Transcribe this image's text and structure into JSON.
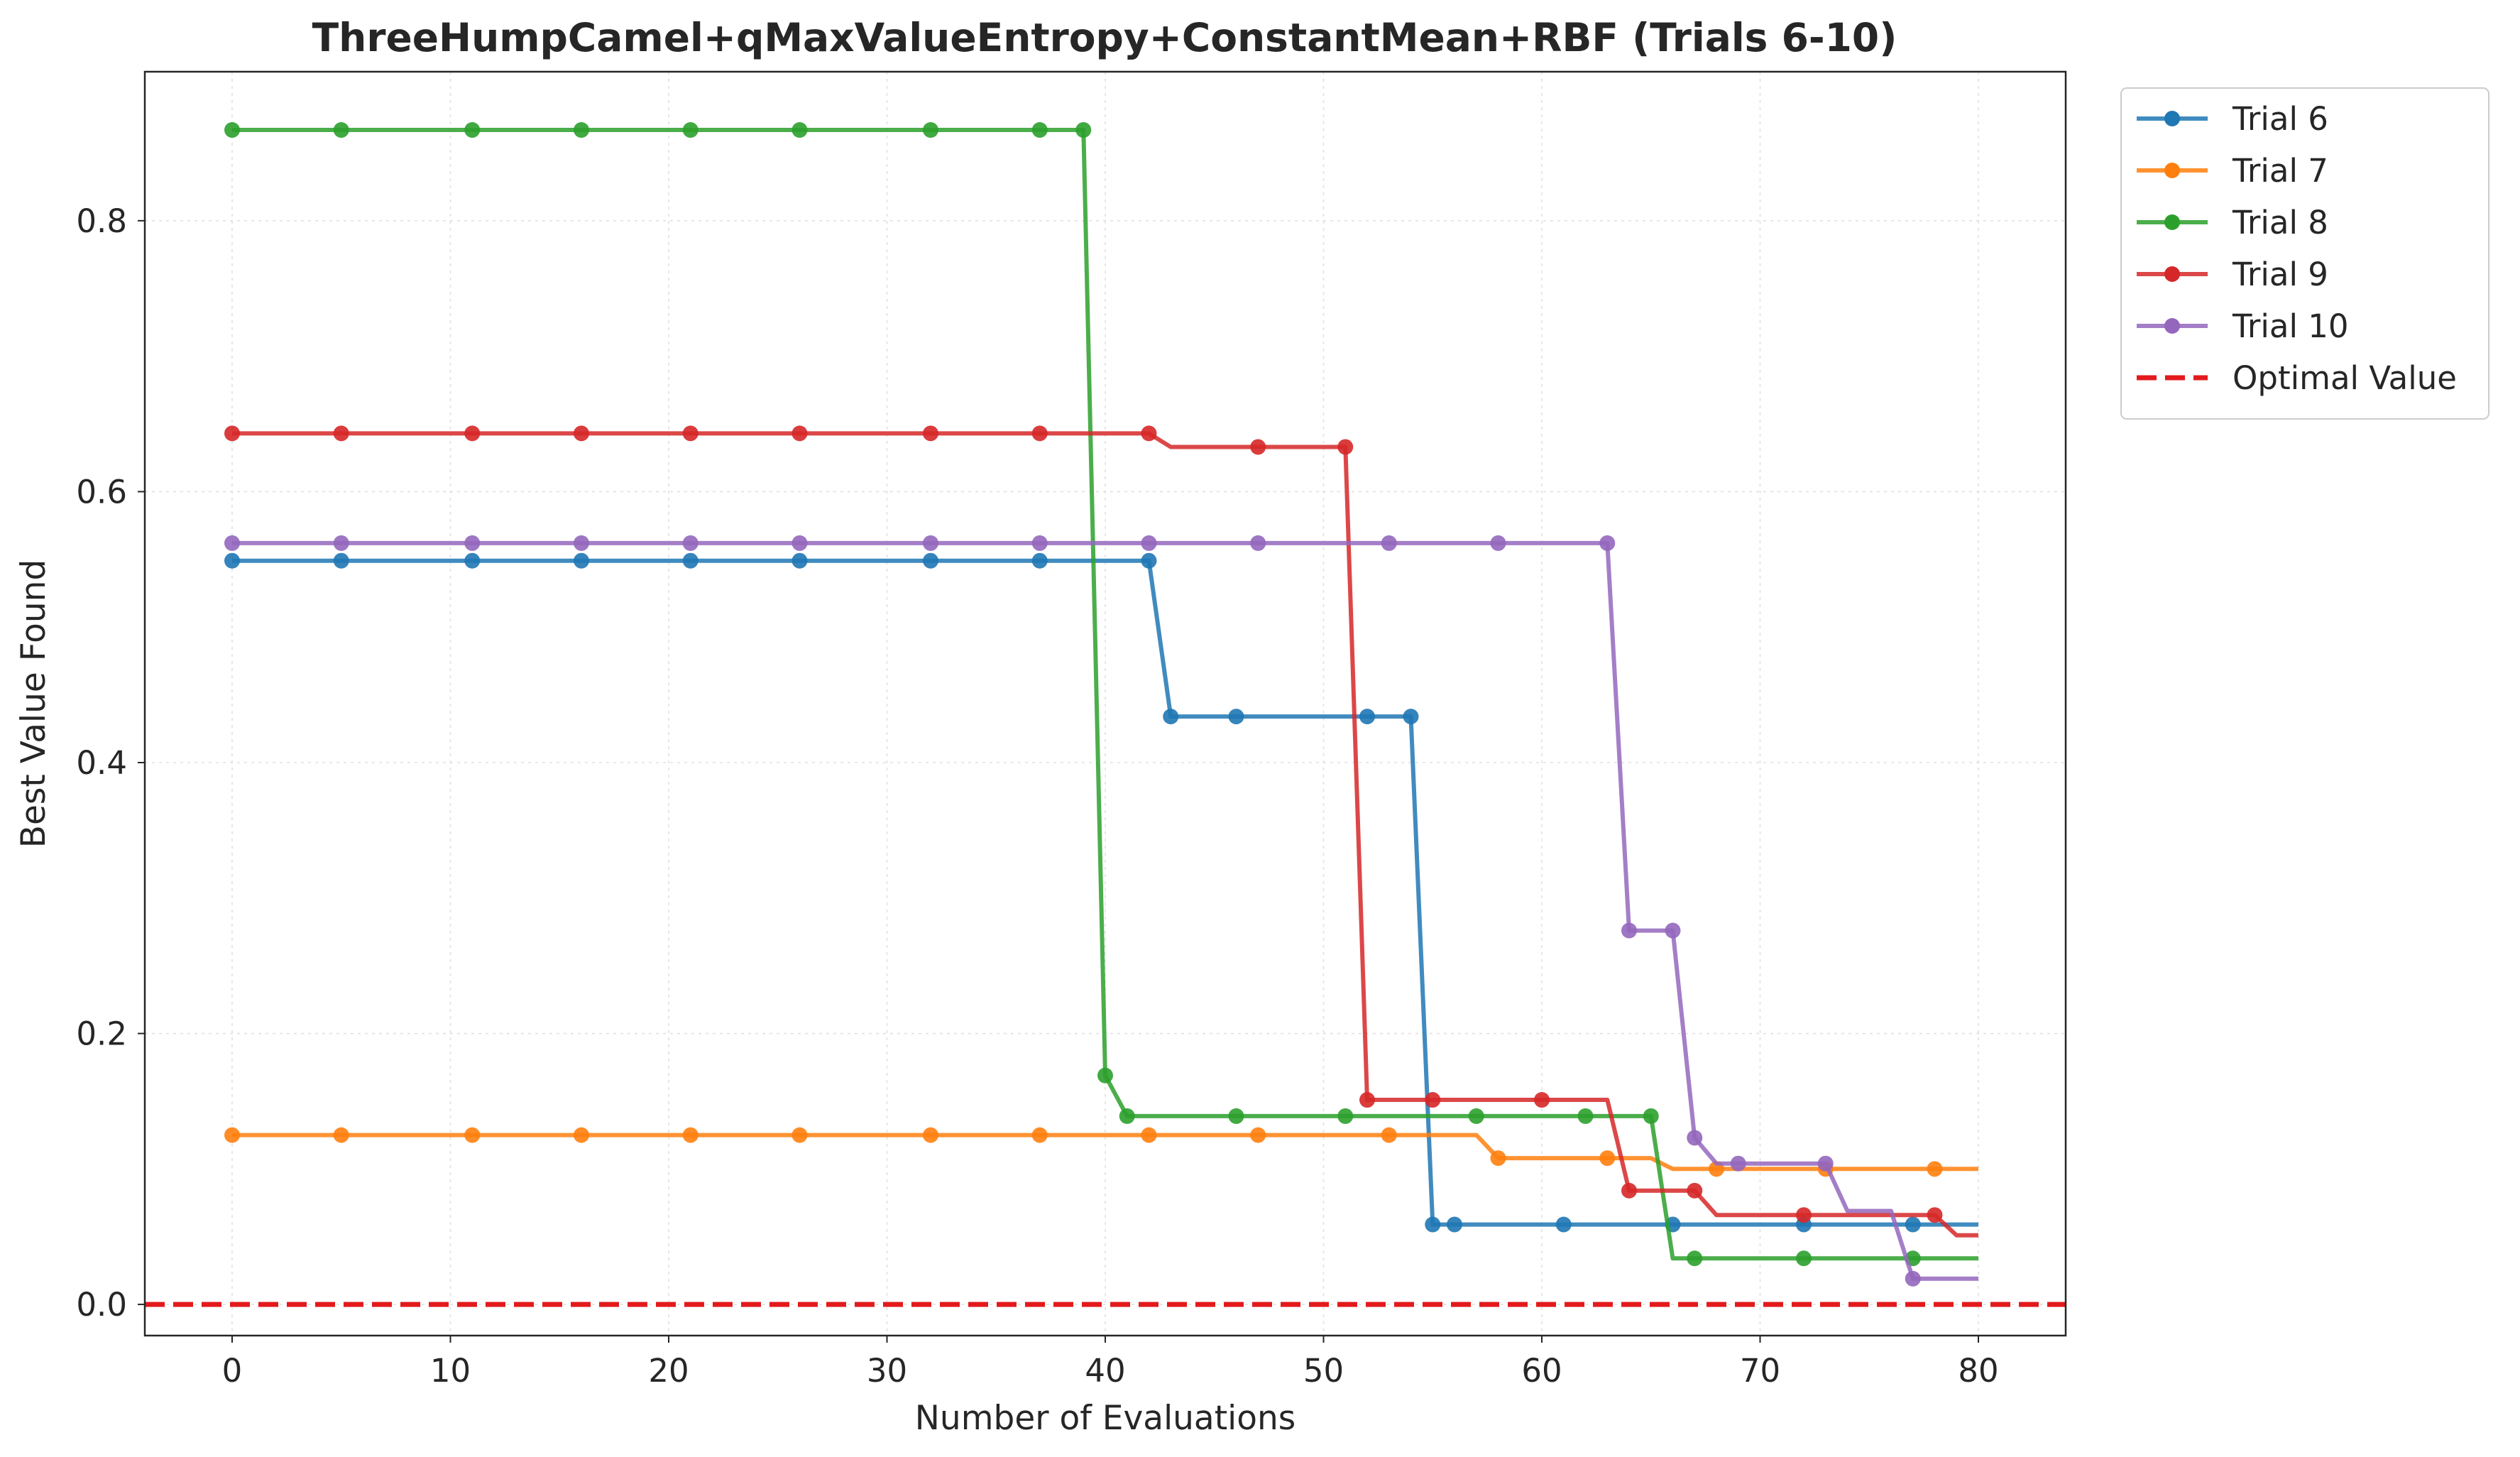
{
  "chart_data": {
    "type": "line",
    "title": "ThreeHumpCamel+qMaxValueEntropy+ConstantMean+RBF (Trials 6-10)",
    "xlabel": "Number of Evaluations",
    "ylabel": "Best Value Found",
    "xlim": [
      -4,
      84
    ],
    "ylim": [
      -0.023,
      0.91
    ],
    "xticks": [
      0,
      10,
      20,
      30,
      40,
      50,
      60,
      70,
      80
    ],
    "xtick_labels": [
      "0",
      "10",
      "20",
      "30",
      "40",
      "50",
      "60",
      "70",
      "80"
    ],
    "yticks": [
      0.0,
      0.2,
      0.4,
      0.6,
      0.8
    ],
    "ytick_labels": [
      "0.0",
      "0.2",
      "0.4",
      "0.6",
      "0.8"
    ],
    "grid": true,
    "legend_position": "outside-top-right",
    "optimal_value": {
      "name": "Optimal Value",
      "y": 0.0,
      "color": "#e31a1c",
      "style": "dashed"
    },
    "series": [
      {
        "name": "Trial 6",
        "color": "#1f77b4",
        "line": [
          [
            0,
            0.549
          ],
          [
            42,
            0.549
          ],
          [
            43,
            0.434
          ],
          [
            54,
            0.434
          ],
          [
            55,
            0.059
          ],
          [
            80,
            0.059
          ]
        ],
        "markers": [
          [
            0,
            0.549
          ],
          [
            5,
            0.549
          ],
          [
            11,
            0.549
          ],
          [
            16,
            0.549
          ],
          [
            21,
            0.549
          ],
          [
            26,
            0.549
          ],
          [
            32,
            0.549
          ],
          [
            37,
            0.549
          ],
          [
            42,
            0.549
          ],
          [
            43,
            0.434
          ],
          [
            46,
            0.434
          ],
          [
            52,
            0.434
          ],
          [
            54,
            0.434
          ],
          [
            55,
            0.059
          ],
          [
            56,
            0.059
          ],
          [
            61,
            0.059
          ],
          [
            66,
            0.059
          ],
          [
            72,
            0.059
          ],
          [
            77,
            0.059
          ]
        ]
      },
      {
        "name": "Trial 7",
        "color": "#ff7f0e",
        "line": [
          [
            0,
            0.125
          ],
          [
            57,
            0.125
          ],
          [
            58,
            0.108
          ],
          [
            65,
            0.108
          ],
          [
            66,
            0.1
          ],
          [
            80,
            0.1
          ]
        ],
        "markers": [
          [
            0,
            0.125
          ],
          [
            5,
            0.125
          ],
          [
            11,
            0.125
          ],
          [
            16,
            0.125
          ],
          [
            21,
            0.125
          ],
          [
            26,
            0.125
          ],
          [
            32,
            0.125
          ],
          [
            37,
            0.125
          ],
          [
            42,
            0.125
          ],
          [
            47,
            0.125
          ],
          [
            53,
            0.125
          ],
          [
            58,
            0.108
          ],
          [
            63,
            0.108
          ],
          [
            68,
            0.1
          ],
          [
            73,
            0.1
          ],
          [
            78,
            0.1
          ]
        ]
      },
      {
        "name": "Trial 8",
        "color": "#2ca02c",
        "line": [
          [
            0,
            0.867
          ],
          [
            39,
            0.867
          ],
          [
            40,
            0.169
          ],
          [
            41,
            0.139
          ],
          [
            65,
            0.139
          ],
          [
            66,
            0.034
          ],
          [
            80,
            0.034
          ]
        ],
        "markers": [
          [
            0,
            0.867
          ],
          [
            5,
            0.867
          ],
          [
            11,
            0.867
          ],
          [
            16,
            0.867
          ],
          [
            21,
            0.867
          ],
          [
            26,
            0.867
          ],
          [
            32,
            0.867
          ],
          [
            37,
            0.867
          ],
          [
            39,
            0.867
          ],
          [
            40,
            0.169
          ],
          [
            41,
            0.139
          ],
          [
            46,
            0.139
          ],
          [
            51,
            0.139
          ],
          [
            57,
            0.139
          ],
          [
            62,
            0.139
          ],
          [
            65,
            0.139
          ],
          [
            67,
            0.034
          ],
          [
            72,
            0.034
          ],
          [
            77,
            0.034
          ]
        ]
      },
      {
        "name": "Trial 9",
        "color": "#d62728",
        "line": [
          [
            0,
            0.643
          ],
          [
            42,
            0.643
          ],
          [
            43,
            0.633
          ],
          [
            51,
            0.633
          ],
          [
            52,
            0.151
          ],
          [
            63,
            0.151
          ],
          [
            64,
            0.084
          ],
          [
            67,
            0.084
          ],
          [
            68,
            0.066
          ],
          [
            78,
            0.066
          ],
          [
            79,
            0.051
          ],
          [
            80,
            0.051
          ]
        ],
        "markers": [
          [
            0,
            0.643
          ],
          [
            5,
            0.643
          ],
          [
            11,
            0.643
          ],
          [
            16,
            0.643
          ],
          [
            21,
            0.643
          ],
          [
            26,
            0.643
          ],
          [
            32,
            0.643
          ],
          [
            37,
            0.643
          ],
          [
            42,
            0.643
          ],
          [
            47,
            0.633
          ],
          [
            51,
            0.633
          ],
          [
            52,
            0.151
          ],
          [
            55,
            0.151
          ],
          [
            60,
            0.151
          ],
          [
            64,
            0.084
          ],
          [
            67,
            0.084
          ],
          [
            72,
            0.066
          ],
          [
            78,
            0.066
          ]
        ]
      },
      {
        "name": "Trial 10",
        "color": "#9467bd",
        "line": [
          [
            0,
            0.562
          ],
          [
            63,
            0.562
          ],
          [
            64,
            0.276
          ],
          [
            66,
            0.276
          ],
          [
            67,
            0.123
          ],
          [
            68,
            0.104
          ],
          [
            73,
            0.104
          ],
          [
            74,
            0.069
          ],
          [
            76,
            0.069
          ],
          [
            77,
            0.019
          ],
          [
            80,
            0.019
          ]
        ],
        "markers": [
          [
            0,
            0.562
          ],
          [
            5,
            0.562
          ],
          [
            11,
            0.562
          ],
          [
            16,
            0.562
          ],
          [
            21,
            0.562
          ],
          [
            26,
            0.562
          ],
          [
            32,
            0.562
          ],
          [
            37,
            0.562
          ],
          [
            42,
            0.562
          ],
          [
            47,
            0.562
          ],
          [
            53,
            0.562
          ],
          [
            58,
            0.562
          ],
          [
            63,
            0.562
          ],
          [
            64,
            0.276
          ],
          [
            66,
            0.276
          ],
          [
            67,
            0.123
          ],
          [
            69,
            0.104
          ],
          [
            73,
            0.104
          ],
          [
            77,
            0.019
          ]
        ]
      }
    ]
  }
}
